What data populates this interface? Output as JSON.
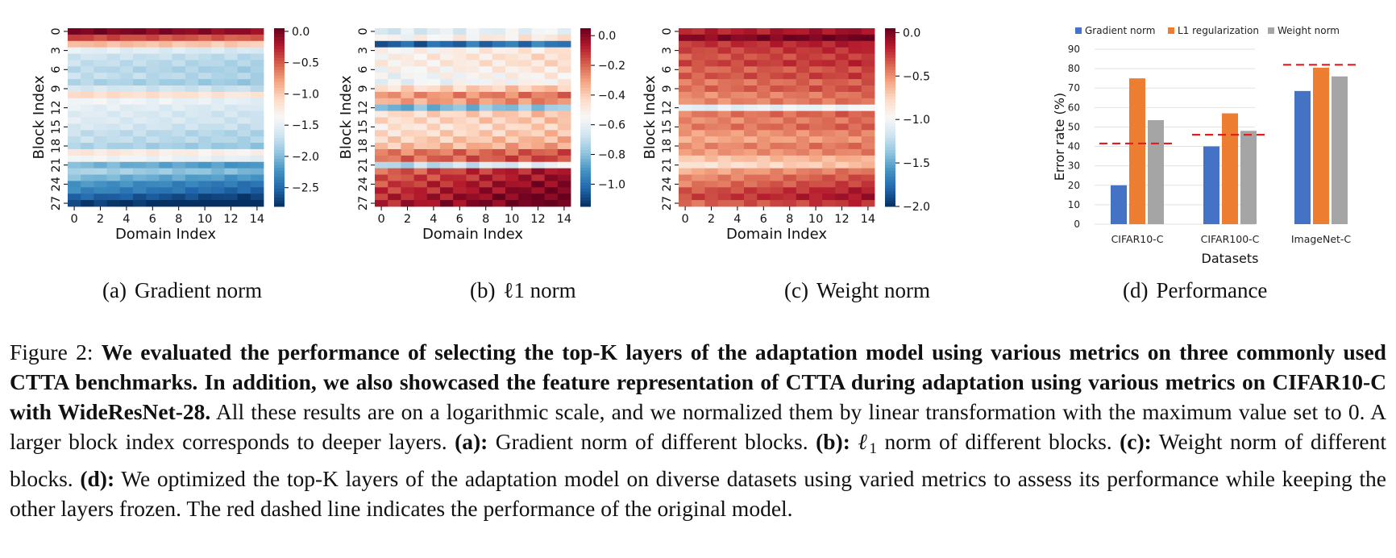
{
  "panels": [
    {
      "id": "a",
      "tag": "(a)",
      "label": "Gradient norm",
      "title": "Gradient norm",
      "xlabel": "Domain Index",
      "ylabel": "Block Index",
      "cbar_ticks": [
        "0.0",
        "−0.5",
        "−1.0",
        "−1.5",
        "−2.0",
        "−2.5"
      ],
      "cbar_values": [
        0,
        -0.5,
        -1.0,
        -1.5,
        -2.0,
        -2.5
      ],
      "cbar_range": [
        -2.8,
        0.05
      ]
    },
    {
      "id": "b",
      "tag": "(b)",
      "label": "ℓ1 norm",
      "title": "l1 norm",
      "xlabel": "Domain Index",
      "ylabel": "Block Index",
      "cbar_ticks": [
        "0.0",
        "−0.2",
        "−0.4",
        "−0.6",
        "−0.8",
        "−1.0"
      ],
      "cbar_values": [
        0,
        -0.2,
        -0.4,
        -0.6,
        -0.8,
        -1.0
      ],
      "cbar_range": [
        -1.15,
        0.05
      ]
    },
    {
      "id": "c",
      "tag": "(c)",
      "label": "Weight norm",
      "title": "Weight norm",
      "xlabel": "Domain Index",
      "ylabel": "Block Index",
      "cbar_ticks": [
        "0.0",
        "−0.5",
        "−1.0",
        "−1.5",
        "−2.0"
      ],
      "cbar_values": [
        0,
        -0.5,
        -1.0,
        -1.5,
        -2.0
      ],
      "cbar_range": [
        -2.0,
        0.05
      ]
    },
    {
      "id": "d",
      "tag": "(d)",
      "label": "Performance"
    }
  ],
  "heatmap_axes": {
    "x_ticks": [
      "0",
      "2",
      "4",
      "6",
      "8",
      "10",
      "12",
      "14"
    ],
    "x_tick_values": [
      0,
      2,
      4,
      6,
      8,
      10,
      12,
      14
    ],
    "y_ticks": [
      "0",
      "3",
      "6",
      "9",
      "12",
      "15",
      "18",
      "21",
      "24",
      "27"
    ],
    "y_tick_values": [
      0,
      3,
      6,
      9,
      12,
      15,
      18,
      21,
      24,
      27
    ],
    "n_domains": 15,
    "n_blocks": 28
  },
  "chart_data": [
    {
      "type": "heatmap",
      "title": "Gradient norm",
      "xlabel": "Domain Index",
      "ylabel": "Block Index",
      "block_profile": [
        0,
        -0.4,
        -0.9,
        -1.5,
        -1.65,
        -1.7,
        -1.75,
        -1.7,
        -1.8,
        -1.6,
        -1.1,
        -1.4,
        -1.5,
        -1.55,
        -1.55,
        -1.6,
        -1.7,
        -1.7,
        -1.8,
        -1.2,
        -1.4,
        -2.0,
        -1.8,
        -2.0,
        -2.2,
        -2.3,
        -2.5,
        -2.7
      ],
      "domain_drift": -0.12,
      "vmin": -2.8,
      "vmax": 0.05
    },
    {
      "type": "heatmap",
      "title": "l1 norm",
      "xlabel": "Domain Index",
      "ylabel": "Block Index",
      "block_profile": [
        -0.65,
        -0.55,
        -1.05,
        -0.55,
        -0.52,
        -0.52,
        -0.55,
        -0.58,
        -0.6,
        -0.45,
        -0.3,
        -0.33,
        -0.85,
        -0.45,
        -0.45,
        -0.48,
        -0.45,
        -0.42,
        -0.38,
        -0.25,
        -0.22,
        -0.75,
        -0.2,
        -0.18,
        -0.15,
        -0.13,
        -0.1,
        -0.08
      ],
      "domain_drift": 0.08,
      "vmin": -1.15,
      "vmax": 0.05
    },
    {
      "type": "heatmap",
      "title": "Weight norm",
      "xlabel": "Domain Index",
      "ylabel": "Block Index",
      "block_profile": [
        -0.2,
        -0.05,
        -0.25,
        -0.3,
        -0.35,
        -0.3,
        -0.4,
        -0.35,
        -0.45,
        -0.4,
        -0.5,
        -0.5,
        -1.1,
        -0.45,
        -0.5,
        -0.45,
        -0.55,
        -0.6,
        -0.5,
        -0.55,
        -0.7,
        -0.85,
        -0.6,
        -0.5,
        -0.45,
        -0.35,
        -0.3,
        -0.4
      ],
      "domain_drift": 0.1,
      "vmin": -2.0,
      "vmax": 0.05
    },
    {
      "type": "bar",
      "categories": [
        "CIFAR10-C",
        "CIFAR100-C",
        "ImageNet-C"
      ],
      "series": [
        {
          "name": "Gradient norm",
          "values": [
            20,
            40,
            68.5
          ],
          "color": "#4472c4"
        },
        {
          "name": "L1 regularization",
          "values": [
            75,
            57,
            80.5
          ],
          "color": "#ed7d31"
        },
        {
          "name": "Weight norm",
          "values": [
            53.5,
            48,
            76
          ],
          "color": "#a5a5a5"
        }
      ],
      "baseline": [
        41.5,
        46,
        82
      ],
      "baseline_color": "#e02020",
      "ylabel": "Error rate (%)",
      "xlabel": "Datasets",
      "yticks": [
        "0",
        "10",
        "20",
        "30",
        "40",
        "50",
        "60",
        "70",
        "80",
        "90"
      ],
      "ylim": [
        0,
        90
      ],
      "legend_position": "top"
    }
  ],
  "figure_caption": {
    "prefix": "Figure 2: ",
    "bold": "We evaluated the performance of selecting the top-K layers of the adaptation model using various metrics on three commonly used CTTA benchmarks. In addition, we also showcased the feature representation of CTTA during adaptation using various metrics on CIFAR10-C with WideResNet-28.",
    "rest1": " All these results are on a logarithmic scale, and we normalized them by linear transformation with the maximum value set to 0. A larger block index corresponds to deeper layers. ",
    "a_label": "(a):",
    "a_text": " Gradient norm of different blocks. ",
    "b_label": "(b):",
    "b_text_pre": " ",
    "b_ell": "ℓ",
    "b_sub": "1",
    "b_text": " norm of different blocks. ",
    "c_label": "(c):",
    "c_text": " Weight norm of different blocks. ",
    "d_label": "(d):",
    "d_text": " We optimized the top-K layers of the adaptation model on diverse datasets using varied metrics to assess its performance while keeping the other layers frozen. The red dashed line indicates the performance of the original model."
  }
}
